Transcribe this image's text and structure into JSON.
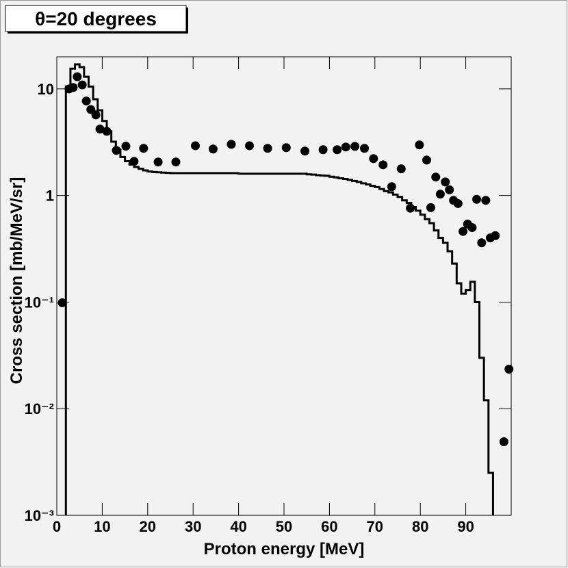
{
  "chart_data": {
    "type": "combo",
    "title": "θ=20 degrees",
    "x_label": "Proton energy [MeV]",
    "y_label": "Cross section [mb/MeV/sr]",
    "xlim": [
      0,
      100
    ],
    "xticks": [
      0,
      10,
      20,
      30,
      40,
      50,
      60,
      70,
      80,
      90
    ],
    "ylim": [
      0.001,
      20
    ],
    "ylog": true,
    "yticks": [
      {
        "value": 0.001,
        "label": "10⁻³"
      },
      {
        "value": 0.01,
        "label": "10⁻²"
      },
      {
        "value": 0.1,
        "label": "10⁻¹"
      },
      1,
      10
    ],
    "series": [
      {
        "type": "step",
        "color": "#000000",
        "bins": [
          2,
          3,
          4,
          5,
          6,
          7,
          8,
          9,
          10,
          11,
          12,
          13,
          14,
          15,
          16,
          17,
          18,
          19,
          20,
          21,
          22,
          23,
          24,
          25,
          26,
          27,
          28,
          29,
          30,
          31,
          32,
          33,
          34,
          35,
          36,
          37,
          38,
          39,
          40,
          41,
          42,
          43,
          44,
          45,
          46,
          47,
          48,
          49,
          50,
          51,
          52,
          53,
          54,
          55,
          56,
          57,
          58,
          59,
          60,
          61,
          62,
          63,
          64,
          65,
          66,
          67,
          68,
          69,
          70,
          71,
          72,
          73,
          74,
          75,
          76,
          77,
          78,
          79,
          80,
          81,
          82,
          83,
          84,
          85,
          86,
          87,
          88,
          89,
          90,
          91,
          92,
          93,
          94,
          95,
          96
        ],
        "values": [
          10.5,
          15.5,
          17,
          16,
          13,
          10.5,
          8,
          6.3,
          5,
          4,
          3.2,
          2.7,
          2.3,
          2.1,
          1.95,
          1.85,
          1.78,
          1.72,
          1.68,
          1.66,
          1.65,
          1.64,
          1.63,
          1.62,
          1.62,
          1.62,
          1.62,
          1.62,
          1.62,
          1.62,
          1.62,
          1.62,
          1.62,
          1.62,
          1.62,
          1.62,
          1.62,
          1.62,
          1.6,
          1.6,
          1.6,
          1.6,
          1.6,
          1.6,
          1.6,
          1.6,
          1.6,
          1.6,
          1.6,
          1.6,
          1.6,
          1.6,
          1.6,
          1.58,
          1.57,
          1.55,
          1.54,
          1.53,
          1.5,
          1.48,
          1.45,
          1.43,
          1.4,
          1.37,
          1.34,
          1.3,
          1.27,
          1.23,
          1.2,
          1.15,
          1.1,
          1.07,
          1.02,
          0.97,
          0.9,
          0.85,
          0.78,
          0.72,
          0.66,
          0.6,
          0.55,
          0.47,
          0.4,
          0.36,
          0.3,
          0.23,
          0.15,
          0.12,
          0.13,
          0.155,
          0.1,
          0.03,
          0.012,
          0.0025
        ]
      },
      {
        "type": "scatter",
        "color": "#000000",
        "x": [
          1.2,
          2.7,
          3.6,
          4.5,
          5.6,
          6.5,
          7.5,
          8.6,
          9.5,
          11,
          13.1,
          15.2,
          17,
          19.1,
          22.3,
          26.2,
          30.5,
          34.4,
          38.4,
          42.4,
          46.4,
          50.5,
          54.6,
          58.6,
          61.7,
          63.6,
          65.6,
          67.7,
          69.7,
          71.8,
          73.7,
          75.8,
          77.8,
          79.8,
          81.4,
          82.3,
          83.4,
          84.4,
          85.5,
          86.4,
          87.3,
          88.3,
          89.4,
          90.4,
          91.4,
          92.4,
          93.5,
          94.4,
          95.4,
          96.5,
          98.4,
          99.5
        ],
        "values": [
          0.0986,
          10,
          10.3,
          13,
          10.9,
          7.7,
          6.4,
          5.7,
          4.2,
          4.0,
          2.65,
          2.9,
          2.09,
          2.77,
          2.06,
          2.06,
          2.93,
          2.73,
          3.02,
          2.93,
          2.77,
          2.81,
          2.61,
          2.69,
          2.69,
          2.85,
          2.89,
          2.77,
          2.22,
          1.94,
          1.21,
          1.78,
          0.76,
          2.98,
          2.15,
          0.77,
          1.49,
          1.03,
          1.34,
          1.13,
          0.9,
          0.84,
          0.46,
          0.54,
          0.5,
          0.92,
          0.36,
          0.9,
          0.4,
          0.42,
          0.0049,
          0.0235
        ]
      }
    ]
  }
}
